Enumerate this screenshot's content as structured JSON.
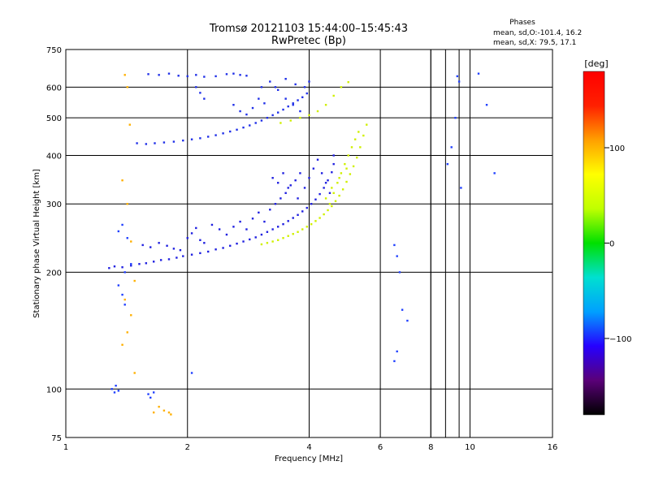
{
  "header": {
    "title_line1": "Tromsø 20121103 15:44:00–15:45:43",
    "title_line2": "RwPretec (Bp)"
  },
  "phases_box": {
    "heading": "Phases",
    "line_o": "mean, sd,O:-101.4, 16.2",
    "line_x": "mean, sd,X:  79.5, 17.1"
  },
  "colorbar": {
    "unit": "[deg]",
    "ticks": [
      "100",
      "0",
      "−100"
    ],
    "tick_values": [
      100,
      0,
      -100
    ],
    "range": [
      -180,
      180
    ],
    "colors": [
      "#000000",
      "#5a0078",
      "#2600ff",
      "#00a0ff",
      "#00e0d0",
      "#00e000",
      "#c0ff00",
      "#ffff00",
      "#ffa000",
      "#ff2000",
      "#ff0000"
    ]
  },
  "chart_data": {
    "type": "scatter",
    "title": "Tromsø 20121103 15:44:00–15:45:43\nRwPretec (Bp)",
    "xlabel": "Frequency [MHz]",
    "ylabel": "Stationary phase Virtual Height [km]",
    "xscale": "log",
    "yscale": "log",
    "xlim": [
      1,
      16
    ],
    "ylim": [
      75,
      750
    ],
    "x_ticks": [
      1,
      2,
      4,
      6,
      8,
      10,
      16
    ],
    "x_tick_labels": [
      "1",
      "2",
      "4",
      "6",
      "8",
      "10",
      "16"
    ],
    "y_ticks": [
      75,
      100,
      200,
      300,
      400,
      500,
      600,
      750
    ],
    "y_tick_labels": [
      "75",
      "100",
      "200",
      "300",
      "400",
      "500",
      "600",
      "750"
    ],
    "x_gridlines": [
      2,
      4,
      6,
      8,
      10
    ],
    "y_gridlines": [
      100,
      200,
      300,
      400,
      500,
      600
    ],
    "x_grid_pairs": [
      8.0,
      8.7,
      9.4
    ],
    "grid": true,
    "series": [
      {
        "color": "#2020e0",
        "points": [
          [
            1.28,
            205
          ],
          [
            1.32,
            207
          ],
          [
            1.38,
            206
          ],
          [
            1.45,
            208
          ],
          [
            1.52,
            210
          ],
          [
            1.58,
            211
          ],
          [
            1.65,
            213
          ],
          [
            1.72,
            215
          ],
          [
            1.8,
            216
          ],
          [
            1.88,
            218
          ],
          [
            1.95,
            220
          ],
          [
            2.05,
            222
          ],
          [
            2.15,
            224
          ],
          [
            2.25,
            226
          ],
          [
            2.35,
            229
          ],
          [
            2.45,
            231
          ],
          [
            2.55,
            234
          ],
          [
            2.65,
            237
          ],
          [
            2.75,
            240
          ],
          [
            2.85,
            243
          ],
          [
            2.95,
            246
          ],
          [
            3.05,
            250
          ],
          [
            3.15,
            254
          ],
          [
            3.25,
            258
          ],
          [
            3.35,
            262
          ],
          [
            3.45,
            266
          ],
          [
            3.55,
            271
          ],
          [
            3.65,
            276
          ],
          [
            3.75,
            281
          ],
          [
            3.85,
            287
          ],
          [
            3.95,
            293
          ],
          [
            4.05,
            300
          ],
          [
            4.15,
            308
          ],
          [
            4.25,
            318
          ],
          [
            4.35,
            330
          ],
          [
            4.45,
            345
          ],
          [
            4.55,
            362
          ],
          [
            4.6,
            380
          ],
          [
            1.55,
            235
          ],
          [
            1.62,
            232
          ],
          [
            1.7,
            238
          ],
          [
            1.78,
            234
          ],
          [
            1.85,
            230
          ],
          [
            1.92,
            228
          ],
          [
            2.0,
            245
          ],
          [
            2.05,
            252
          ],
          [
            2.1,
            260
          ],
          [
            2.15,
            242
          ],
          [
            2.2,
            238
          ],
          [
            2.3,
            265
          ],
          [
            2.4,
            258
          ],
          [
            2.5,
            250
          ],
          [
            2.6,
            262
          ],
          [
            2.7,
            270
          ],
          [
            2.8,
            258
          ],
          [
            2.9,
            275
          ],
          [
            3.0,
            285
          ],
          [
            3.1,
            270
          ],
          [
            3.2,
            290
          ],
          [
            3.3,
            300
          ],
          [
            3.4,
            310
          ],
          [
            3.5,
            320
          ],
          [
            3.6,
            335
          ],
          [
            3.7,
            345
          ],
          [
            3.8,
            360
          ],
          [
            3.9,
            330
          ],
          [
            4.0,
            350
          ],
          [
            4.1,
            370
          ],
          [
            4.2,
            390
          ],
          [
            4.3,
            360
          ],
          [
            4.4,
            340
          ],
          [
            4.5,
            320
          ],
          [
            4.6,
            400
          ],
          [
            3.25,
            350
          ],
          [
            3.35,
            340
          ],
          [
            3.45,
            360
          ],
          [
            3.55,
            330
          ],
          [
            3.75,
            310
          ]
        ]
      },
      {
        "color": "#2030e8",
        "points": [
          [
            1.5,
            430
          ],
          [
            1.58,
            428
          ],
          [
            1.66,
            430
          ],
          [
            1.75,
            432
          ],
          [
            1.85,
            434
          ],
          [
            1.95,
            437
          ],
          [
            2.05,
            440
          ],
          [
            2.15,
            443
          ],
          [
            2.25,
            447
          ],
          [
            2.35,
            451
          ],
          [
            2.45,
            456
          ],
          [
            2.55,
            461
          ],
          [
            2.65,
            466
          ],
          [
            2.75,
            472
          ],
          [
            2.85,
            478
          ],
          [
            2.95,
            485
          ],
          [
            3.05,
            492
          ],
          [
            3.15,
            500
          ],
          [
            3.25,
            508
          ],
          [
            3.35,
            516
          ],
          [
            3.45,
            525
          ],
          [
            3.55,
            535
          ],
          [
            3.65,
            545
          ],
          [
            3.75,
            555
          ],
          [
            3.85,
            565
          ],
          [
            3.95,
            578
          ],
          [
            1.6,
            648
          ],
          [
            1.7,
            645
          ],
          [
            1.8,
            650
          ],
          [
            1.9,
            642
          ],
          [
            2.0,
            640
          ],
          [
            2.1,
            645
          ],
          [
            2.2,
            638
          ],
          [
            2.35,
            640
          ],
          [
            2.5,
            648
          ],
          [
            2.6,
            650
          ],
          [
            2.7,
            645
          ],
          [
            2.8,
            642
          ],
          [
            3.05,
            600
          ],
          [
            3.2,
            620
          ],
          [
            3.35,
            590
          ],
          [
            3.5,
            560
          ],
          [
            3.65,
            540
          ],
          [
            3.8,
            520
          ],
          [
            2.1,
            600
          ],
          [
            2.15,
            580
          ],
          [
            2.2,
            560
          ],
          [
            2.6,
            540
          ],
          [
            2.7,
            520
          ],
          [
            2.8,
            510
          ],
          [
            2.9,
            530
          ],
          [
            3.0,
            560
          ],
          [
            3.1,
            545
          ],
          [
            3.3,
            600
          ],
          [
            3.5,
            630
          ],
          [
            3.7,
            610
          ],
          [
            3.9,
            600
          ],
          [
            4.0,
            620
          ]
        ]
      },
      {
        "color": "#d0f000",
        "points": [
          [
            3.05,
            236
          ],
          [
            3.15,
            238
          ],
          [
            3.25,
            240
          ],
          [
            3.35,
            242
          ],
          [
            3.45,
            245
          ],
          [
            3.55,
            248
          ],
          [
            3.65,
            251
          ],
          [
            3.75,
            254
          ],
          [
            3.85,
            258
          ],
          [
            3.95,
            262
          ],
          [
            4.05,
            266
          ],
          [
            4.15,
            271
          ],
          [
            4.25,
            276
          ],
          [
            4.35,
            282
          ],
          [
            4.45,
            289
          ],
          [
            4.55,
            296
          ],
          [
            4.65,
            305
          ],
          [
            4.75,
            315
          ],
          [
            4.85,
            327
          ],
          [
            4.95,
            342
          ],
          [
            5.05,
            358
          ],
          [
            5.15,
            375
          ],
          [
            5.25,
            395
          ],
          [
            5.35,
            420
          ],
          [
            5.45,
            450
          ],
          [
            5.55,
            480
          ],
          [
            4.5,
            300
          ],
          [
            4.6,
            320
          ],
          [
            4.7,
            340
          ],
          [
            4.8,
            360
          ],
          [
            4.9,
            380
          ],
          [
            5.0,
            400
          ],
          [
            5.1,
            420
          ],
          [
            5.2,
            440
          ],
          [
            5.3,
            460
          ],
          [
            4.4,
            310
          ],
          [
            4.55,
            330
          ],
          [
            4.75,
            350
          ],
          [
            4.95,
            370
          ],
          [
            3.4,
            485
          ],
          [
            3.6,
            492
          ],
          [
            3.8,
            500
          ],
          [
            4.0,
            508
          ],
          [
            4.2,
            520
          ],
          [
            4.4,
            540
          ],
          [
            4.6,
            570
          ],
          [
            4.8,
            600
          ],
          [
            5.0,
            618
          ]
        ]
      },
      {
        "color": "#ffb000",
        "points": [
          [
            1.4,
            645
          ],
          [
            1.42,
            600
          ],
          [
            1.44,
            480
          ],
          [
            1.38,
            345
          ],
          [
            1.42,
            300
          ],
          [
            1.45,
            240
          ],
          [
            1.48,
            190
          ],
          [
            1.4,
            170
          ],
          [
            1.45,
            155
          ],
          [
            1.42,
            140
          ],
          [
            1.38,
            130
          ],
          [
            1.48,
            110
          ],
          [
            1.7,
            90
          ],
          [
            1.75,
            88
          ],
          [
            1.8,
            87
          ],
          [
            1.82,
            86
          ],
          [
            1.65,
            87
          ]
        ]
      },
      {
        "color": "#2040ff",
        "points": [
          [
            1.3,
            100
          ],
          [
            1.32,
            98
          ],
          [
            1.33,
            102
          ],
          [
            1.35,
            99
          ],
          [
            1.6,
            97
          ],
          [
            1.62,
            95
          ],
          [
            1.65,
            98
          ],
          [
            2.05,
            110
          ],
          [
            1.38,
            265
          ],
          [
            1.35,
            255
          ],
          [
            1.42,
            245
          ],
          [
            1.45,
            210
          ],
          [
            1.4,
            200
          ],
          [
            1.35,
            185
          ],
          [
            1.38,
            175
          ],
          [
            1.4,
            165
          ],
          [
            6.5,
            235
          ],
          [
            6.6,
            220
          ],
          [
            6.7,
            200
          ],
          [
            6.8,
            160
          ],
          [
            7.0,
            150
          ],
          [
            6.6,
            125
          ],
          [
            6.5,
            118
          ],
          [
            9.3,
            640
          ],
          [
            9.4,
            620
          ],
          [
            10.5,
            650
          ],
          [
            11.0,
            540
          ],
          [
            11.5,
            360
          ],
          [
            9.2,
            500
          ],
          [
            9.0,
            420
          ],
          [
            8.8,
            380
          ],
          [
            9.5,
            330
          ]
        ]
      }
    ]
  }
}
